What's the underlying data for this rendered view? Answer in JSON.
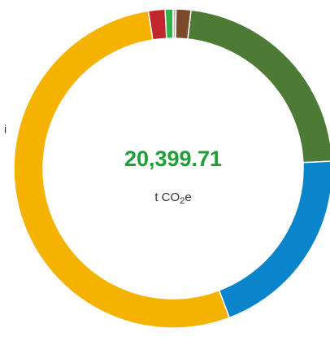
{
  "chart_data": {
    "type": "donut",
    "categories": [
      null,
      null,
      null,
      null,
      null,
      null,
      null
    ],
    "values": [
      1.7,
      0.8,
      0.3,
      1.5,
      22.5,
      20,
      53.3
    ],
    "colors": [
      "#c0272d",
      "#2db34a",
      "#b5b5b5",
      "#7a4a2a",
      "#4d7a35",
      "#0a85cc",
      "#f5b300"
    ],
    "center_value": "20,399.71",
    "center_value_color": "#1f9e3a",
    "unit": [
      "t CO",
      "2",
      "e"
    ],
    "side_text": "i"
  }
}
